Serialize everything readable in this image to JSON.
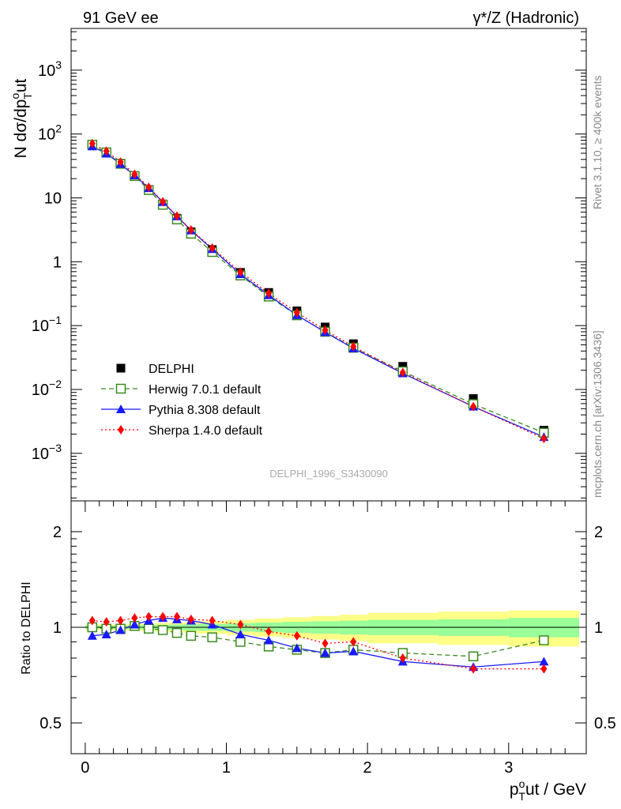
{
  "header": {
    "left_title": "91 GeV ee",
    "right_title": "γ*/Z (Hadronic)"
  },
  "side_labels": {
    "rivet": "Rivet 3.1.10, ≥ 400k events",
    "mcplots": "mcplots.cern.ch [arXiv:1306.3436]"
  },
  "watermark": "DELPHI_1996_S3430090",
  "chart_data": [
    {
      "type": "line",
      "id": "main",
      "ylabel": "N dσ/dp_T^out",
      "xlabel": "p_T^out / GeV",
      "yscale": "log",
      "ylim": [
        0.00018,
        4500
      ],
      "xlim": [
        -0.1,
        3.55
      ],
      "y_tick_labels": [
        {
          "v": 1000,
          "base": "10",
          "exp": "3"
        },
        {
          "v": 100,
          "base": "10",
          "exp": "2"
        },
        {
          "v": 10,
          "base": "10",
          "exp": ""
        },
        {
          "v": 1,
          "base": "1",
          "exp": ""
        },
        {
          "v": 0.1,
          "base": "10",
          "exp": "−1"
        },
        {
          "v": 0.01,
          "base": "10",
          "exp": "−2"
        },
        {
          "v": 0.001,
          "base": "10",
          "exp": "−3"
        }
      ],
      "x": [
        0.05,
        0.15,
        0.25,
        0.35,
        0.45,
        0.55,
        0.65,
        0.75,
        0.9,
        1.1,
        1.3,
        1.5,
        1.7,
        1.9,
        2.25,
        2.75,
        3.25
      ],
      "data": {
        "name": "DELPHI",
        "values": [
          68,
          52,
          35,
          22,
          13.5,
          8.0,
          4.8,
          2.95,
          1.55,
          0.68,
          0.33,
          0.17,
          0.095,
          0.052,
          0.023,
          0.0072,
          0.0023
        ]
      },
      "series": [
        {
          "name": "Herwig 7.0.1 default",
          "color": "#3a8a1f",
          "style": "dashed",
          "marker": "open-square",
          "values": [
            68,
            51.5,
            34.2,
            22.0,
            13.3,
            7.8,
            4.6,
            2.75,
            1.42,
            0.61,
            0.285,
            0.145,
            0.08,
            0.045,
            0.0192,
            0.0059,
            0.0021
          ]
        },
        {
          "name": "Pythia 8.308 default",
          "color": "#1a1aff",
          "style": "solid",
          "marker": "triangle",
          "values": [
            64,
            49.5,
            34.0,
            22.5,
            14.2,
            8.6,
            5.15,
            3.1,
            1.58,
            0.64,
            0.3,
            0.146,
            0.079,
            0.044,
            0.0179,
            0.0054,
            0.0018
          ]
        },
        {
          "name": "Sherpa 1.4.0 default",
          "color": "#ff0000",
          "style": "dotted",
          "marker": "diamond",
          "values": [
            71,
            54,
            36.5,
            23.5,
            14.7,
            8.7,
            5.2,
            3.15,
            1.64,
            0.69,
            0.32,
            0.16,
            0.085,
            0.047,
            0.0184,
            0.0054,
            0.0017
          ]
        }
      ]
    },
    {
      "type": "line",
      "id": "ratio",
      "ylabel": "Ratio to DELPHI",
      "xlabel": "p_T^out / GeV",
      "yscale": "log",
      "ylim": [
        0.4,
        2.5
      ],
      "xlim": [
        -0.1,
        3.55
      ],
      "y_tick_labels": [
        {
          "v": 2,
          "label": "2"
        },
        {
          "v": 1,
          "label": "1"
        },
        {
          "v": 0.5,
          "label": "0.5"
        }
      ],
      "x_tick_labels": [
        {
          "v": 0,
          "label": "0"
        },
        {
          "v": 1,
          "label": "1"
        },
        {
          "v": 2,
          "label": "2"
        },
        {
          "v": 3,
          "label": "3"
        }
      ],
      "x": [
        0.05,
        0.15,
        0.25,
        0.35,
        0.45,
        0.55,
        0.65,
        0.75,
        0.9,
        1.1,
        1.3,
        1.5,
        1.7,
        1.9,
        2.25,
        2.75,
        3.25
      ],
      "bin_edges": [
        0.0,
        0.1,
        0.2,
        0.3,
        0.4,
        0.5,
        0.6,
        0.7,
        0.8,
        1.0,
        1.2,
        1.4,
        1.6,
        1.8,
        2.0,
        2.5,
        3.0,
        3.5
      ],
      "band_inner": [
        0.012,
        0.012,
        0.012,
        0.014,
        0.016,
        0.018,
        0.02,
        0.022,
        0.025,
        0.03,
        0.035,
        0.04,
        0.045,
        0.05,
        0.055,
        0.06,
        0.07
      ],
      "band_outer": [
        0.02,
        0.02,
        0.022,
        0.025,
        0.028,
        0.032,
        0.036,
        0.04,
        0.045,
        0.055,
        0.065,
        0.075,
        0.085,
        0.095,
        0.11,
        0.12,
        0.13
      ],
      "series": [
        {
          "name": "Herwig 7.0.1 default",
          "color": "#3a8a1f",
          "style": "dashed",
          "marker": "open-square",
          "values": [
            1.0,
            0.99,
            0.99,
            1.01,
            0.99,
            0.98,
            0.96,
            0.94,
            0.93,
            0.9,
            0.87,
            0.85,
            0.83,
            0.85,
            0.83,
            0.81,
            0.91
          ]
        },
        {
          "name": "Pythia 8.308 default",
          "color": "#1a1aff",
          "style": "solid",
          "marker": "triangle",
          "values": [
            0.94,
            0.95,
            0.98,
            1.02,
            1.05,
            1.07,
            1.06,
            1.05,
            1.02,
            0.95,
            0.91,
            0.86,
            0.83,
            0.84,
            0.78,
            0.75,
            0.78
          ]
        },
        {
          "name": "Sherpa 1.4.0 default",
          "color": "#ff0000",
          "style": "dotted",
          "marker": "diamond",
          "values": [
            1.05,
            1.04,
            1.05,
            1.07,
            1.08,
            1.08,
            1.08,
            1.06,
            1.05,
            1.02,
            0.97,
            0.94,
            0.89,
            0.9,
            0.8,
            0.74,
            0.74
          ]
        }
      ]
    }
  ]
}
